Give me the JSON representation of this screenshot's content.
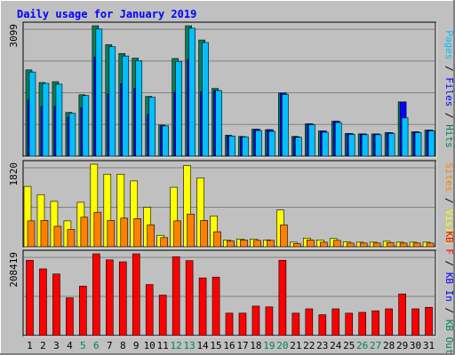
{
  "title": "Daily usage for January 2019",
  "colors": {
    "background": "#C0C0C0",
    "title": "#0000FF",
    "grid": "#808080",
    "hits": "#00805C",
    "files": "#0000FF",
    "pages": "#00C0FF",
    "visits": "#FFFF00",
    "sites": "#FF8000",
    "kb_f": "#FF0000",
    "kb_in": "#0000FF",
    "kb_out": "#00805C",
    "weekend_label": "#00805C",
    "weekday_label": "#000000"
  },
  "chart_data": [
    {
      "type": "bar",
      "panel": "hits-files-pages",
      "ymax_label": "3099",
      "ylim": [
        0,
        3099
      ],
      "grid": true,
      "legend": [
        {
          "label": "Pages",
          "key": "pages"
        },
        {
          "label": "Files",
          "key": "files"
        },
        {
          "label": "Hits",
          "key": "hits"
        }
      ],
      "categories": [
        "1",
        "2",
        "3",
        "4",
        "5",
        "6",
        "7",
        "8",
        "9",
        "10",
        "11",
        "12",
        "13",
        "14",
        "15",
        "16",
        "17",
        "18",
        "19",
        "20",
        "21",
        "22",
        "23",
        "24",
        "25",
        "26",
        "27",
        "28",
        "29",
        "30",
        "31"
      ],
      "series": [
        {
          "name": "Hits",
          "key": "hits",
          "values": [
            2050,
            1750,
            1770,
            1040,
            1460,
            3099,
            2650,
            2440,
            2330,
            1420,
            740,
            2320,
            3099,
            2760,
            1610,
            500,
            470,
            640,
            630,
            1500,
            470,
            770,
            600,
            830,
            540,
            530,
            530,
            560,
            1290,
            580,
            620
          ]
        },
        {
          "name": "Files",
          "key": "files",
          "values": [
            1330,
            1180,
            1180,
            920,
            1150,
            2350,
            1480,
            1720,
            1610,
            990,
            720,
            1520,
            2300,
            1530,
            1560,
            480,
            460,
            640,
            630,
            1500,
            460,
            770,
            600,
            830,
            540,
            530,
            530,
            560,
            1290,
            580,
            620
          ]
        },
        {
          "name": "Pages",
          "key": "pages",
          "values": [
            2000,
            1730,
            1710,
            1020,
            1440,
            3020,
            2600,
            2380,
            2270,
            1400,
            720,
            2250,
            3040,
            2700,
            1560,
            480,
            460,
            610,
            590,
            1470,
            450,
            750,
            570,
            800,
            520,
            510,
            510,
            540,
            910,
            560,
            600
          ]
        }
      ]
    },
    {
      "type": "bar",
      "panel": "visits-sites",
      "ymax_label": "1820",
      "ylim": [
        0,
        1820
      ],
      "grid": true,
      "legend": [
        {
          "label": "Sites",
          "key": "sites"
        },
        {
          "label": "Visits",
          "key": "visits"
        }
      ],
      "categories": [
        "1",
        "2",
        "3",
        "4",
        "5",
        "6",
        "7",
        "8",
        "9",
        "10",
        "11",
        "12",
        "13",
        "14",
        "15",
        "16",
        "17",
        "18",
        "19",
        "20",
        "21",
        "22",
        "23",
        "24",
        "25",
        "26",
        "27",
        "28",
        "29",
        "30",
        "31"
      ],
      "series": [
        {
          "name": "Visits",
          "key": "visits",
          "values": [
            1330,
            1150,
            1000,
            570,
            980,
            1820,
            1600,
            1600,
            1450,
            870,
            250,
            1310,
            1790,
            1520,
            680,
            150,
            170,
            170,
            150,
            810,
            100,
            190,
            150,
            180,
            110,
            100,
            100,
            120,
            100,
            100,
            100
          ]
        },
        {
          "name": "Sites",
          "key": "sites",
          "values": [
            570,
            580,
            450,
            380,
            650,
            760,
            580,
            630,
            620,
            480,
            200,
            570,
            720,
            580,
            330,
            130,
            150,
            140,
            140,
            480,
            70,
            150,
            100,
            140,
            80,
            80,
            80,
            90,
            80,
            80,
            80
          ]
        }
      ]
    },
    {
      "type": "bar",
      "panel": "kbytes",
      "ymax_label": "208419",
      "ylim": [
        0,
        208419
      ],
      "grid": true,
      "legend": [
        {
          "label": "KB F",
          "key": "kb_f"
        },
        {
          "label": "KB In",
          "key": "kb_in"
        },
        {
          "label": "KB Out",
          "key": "kb_out"
        }
      ],
      "categories": [
        "1",
        "2",
        "3",
        "4",
        "5",
        "6",
        "7",
        "8",
        "9",
        "10",
        "11",
        "12",
        "13",
        "14",
        "15",
        "16",
        "17",
        "18",
        "19",
        "20",
        "21",
        "22",
        "23",
        "24",
        "25",
        "26",
        "27",
        "28",
        "29",
        "30",
        "31"
      ],
      "series": [
        {
          "name": "KB F",
          "key": "kb_f",
          "values": [
            192000,
            170000,
            157000,
            96000,
            126000,
            208419,
            193000,
            188000,
            208419,
            130000,
            103000,
            201000,
            191000,
            147000,
            149000,
            57000,
            57000,
            75000,
            73000,
            192000,
            57000,
            68000,
            53000,
            68000,
            57000,
            59000,
            63000,
            68000,
            106000,
            68000,
            72000
          ]
        }
      ]
    }
  ]
}
